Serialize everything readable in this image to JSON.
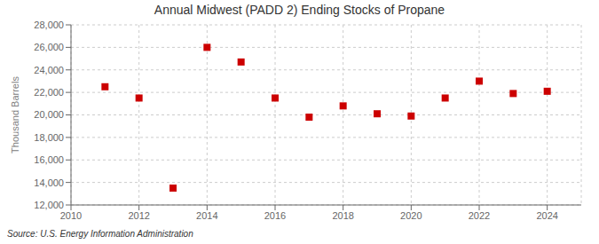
{
  "chart_data": {
    "type": "scatter",
    "title": "Annual Midwest (PADD 2) Ending Stocks of Propane",
    "ylabel": "Thousand Barrels",
    "annotation": "Source: U.S. Energy Information Administration",
    "x": [
      2011,
      2012,
      2013,
      2014,
      2015,
      2016,
      2017,
      2018,
      2019,
      2020,
      2021,
      2022,
      2023,
      2024
    ],
    "values": [
      22500,
      21500,
      13500,
      26000,
      24700,
      21500,
      19800,
      20800,
      20100,
      19900,
      21500,
      23000,
      21900,
      22100
    ],
    "color": "#cc0000",
    "marker": "square",
    "xlim": [
      2010,
      2025
    ],
    "xticks": [
      2010,
      2012,
      2014,
      2016,
      2018,
      2020,
      2022,
      2024
    ],
    "ylim": [
      12000,
      28000
    ],
    "yticks": [
      {
        "value": 12000,
        "label": "12,000"
      },
      {
        "value": 14000,
        "label": "14,000"
      },
      {
        "value": 16000,
        "label": "16,000"
      },
      {
        "value": 18000,
        "label": "18,000"
      },
      {
        "value": 20000,
        "label": "20,000"
      },
      {
        "value": 22000,
        "label": "22,000"
      },
      {
        "value": 24000,
        "label": "24,000"
      },
      {
        "value": 26000,
        "label": "26,000"
      },
      {
        "value": 28000,
        "label": "28,000"
      }
    ],
    "grid": true
  }
}
